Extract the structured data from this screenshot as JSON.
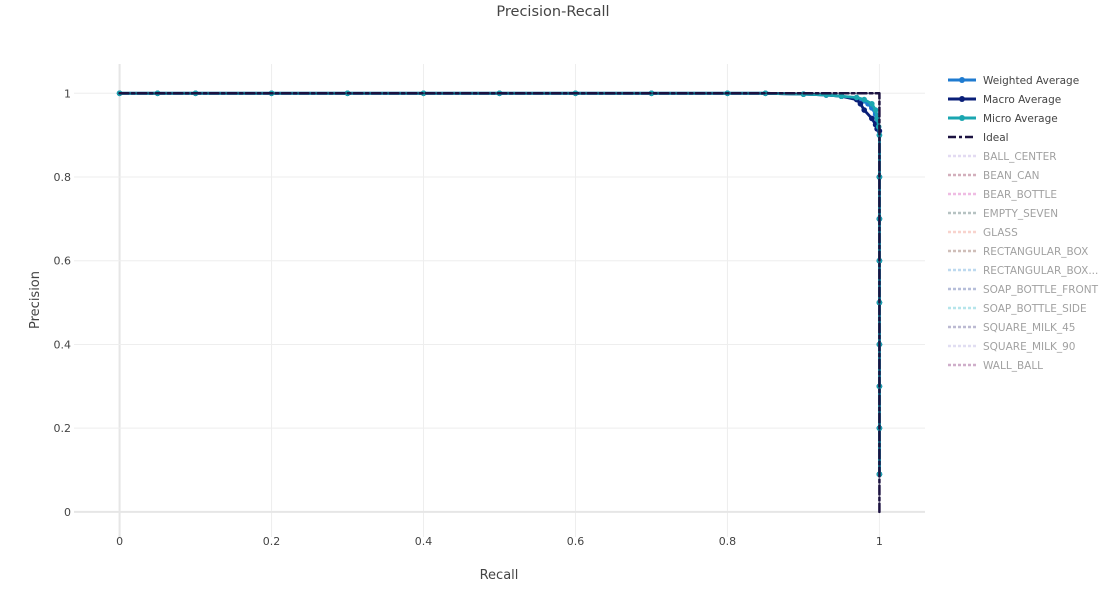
{
  "chart_data": {
    "type": "line",
    "title": "Precision-Recall",
    "xlabel": "Recall",
    "ylabel": "Precision",
    "xlim": [
      -0.06,
      1.06
    ],
    "ylim": [
      -0.06,
      1.07
    ],
    "xticks": [
      0,
      0.2,
      0.4,
      0.6,
      0.8,
      1
    ],
    "yticks": [
      0,
      0.2,
      0.4,
      0.6,
      0.8,
      1
    ],
    "xtick_labels": [
      "0",
      "0.2",
      "0.4",
      "0.6",
      "0.8",
      "1"
    ],
    "ytick_labels": [
      "0",
      "0.2",
      "0.4",
      "0.6",
      "0.8",
      "1"
    ],
    "grid": true,
    "legend_position": "right",
    "series": [
      {
        "name": "Weighted Average",
        "color": "#1f7bd0",
        "style": "lines+markers",
        "x": [
          0,
          0.05,
          0.1,
          0.2,
          0.3,
          0.4,
          0.5,
          0.6,
          0.7,
          0.8,
          0.85,
          0.9,
          0.93,
          0.95,
          0.97,
          0.98,
          0.985,
          0.99,
          0.995,
          0.997,
          1.0,
          1.0,
          1.0,
          1.0,
          1.0,
          1.0,
          1.0,
          1.0,
          1.0
        ],
        "y": [
          1,
          1,
          1,
          1,
          1,
          1,
          1,
          1,
          1,
          1,
          1,
          0.998,
          0.996,
          0.993,
          0.988,
          0.982,
          0.975,
          0.965,
          0.95,
          0.93,
          0.9,
          0.8,
          0.7,
          0.6,
          0.5,
          0.4,
          0.3,
          0.2,
          0.09
        ]
      },
      {
        "name": "Macro Average",
        "color": "#0a1f78",
        "style": "lines+markers",
        "x": [
          0,
          0.05,
          0.1,
          0.2,
          0.3,
          0.4,
          0.5,
          0.6,
          0.7,
          0.8,
          0.85,
          0.9,
          0.93,
          0.95,
          0.97,
          0.975,
          0.98,
          0.99,
          0.995,
          0.997,
          1.0,
          1.0,
          1.0,
          1.0,
          1.0,
          1.0,
          1.0,
          1.0,
          1.0
        ],
        "y": [
          1,
          1,
          1,
          1,
          1,
          1,
          1,
          1,
          1,
          1,
          1,
          0.998,
          0.996,
          0.993,
          0.985,
          0.975,
          0.96,
          0.94,
          0.925,
          0.915,
          0.91,
          0.8,
          0.7,
          0.6,
          0.5,
          0.4,
          0.3,
          0.2,
          0.09
        ]
      },
      {
        "name": "Micro Average",
        "color": "#1aa6b0",
        "style": "lines+markers",
        "x": [
          0,
          0.05,
          0.1,
          0.2,
          0.3,
          0.4,
          0.5,
          0.6,
          0.7,
          0.8,
          0.85,
          0.9,
          0.93,
          0.95,
          0.97,
          0.98,
          0.99,
          0.995,
          0.997,
          0.999,
          1.0,
          1.0,
          1.0,
          1.0,
          1.0,
          1.0,
          1.0,
          1.0,
          1.0
        ],
        "y": [
          1,
          1,
          1,
          1,
          1,
          1,
          1,
          1,
          1,
          1,
          1,
          0.998,
          0.996,
          0.993,
          0.99,
          0.985,
          0.975,
          0.96,
          0.94,
          0.92,
          0.9,
          0.8,
          0.7,
          0.6,
          0.5,
          0.4,
          0.3,
          0.2,
          0.09
        ]
      },
      {
        "name": "Ideal",
        "color": "#1c1240",
        "style": "dashdot",
        "x": [
          0,
          1,
          1
        ],
        "y": [
          1,
          1,
          0
        ]
      },
      {
        "name": "BALL_CENTER",
        "color": "#c9b8e6",
        "style": "dot",
        "visible": "legendonly"
      },
      {
        "name": "BEAN_CAN",
        "color": "#a8627c",
        "style": "dot",
        "visible": "legendonly"
      },
      {
        "name": "BEAR_BOTTLE",
        "color": "#e07bc8",
        "style": "dot",
        "visible": "legendonly"
      },
      {
        "name": "EMPTY_SEVEN",
        "color": "#6f8786",
        "style": "dot",
        "visible": "legendonly"
      },
      {
        "name": "GLASS",
        "color": "#f3a99c",
        "style": "dot",
        "visible": "legendonly"
      },
      {
        "name": "RECTANGULAR_BOX",
        "color": "#a07f74",
        "style": "dot",
        "visible": "legendonly"
      },
      {
        "name": "RECTANGULAR_BOX...",
        "color": "#7db4e0",
        "style": "dot",
        "visible": "legendonly"
      },
      {
        "name": "SOAP_BOTTLE_FRONT",
        "color": "#6f7fb4",
        "style": "dot",
        "visible": "legendonly"
      },
      {
        "name": "SOAP_BOTTLE_SIDE",
        "color": "#6fcdd8",
        "style": "dot",
        "visible": "legendonly"
      },
      {
        "name": "SQUARE_MILK_45",
        "color": "#7c77a6",
        "style": "dot",
        "visible": "legendonly"
      },
      {
        "name": "SQUARE_MILK_90",
        "color": "#c4bfe6",
        "style": "dot",
        "visible": "legendonly"
      },
      {
        "name": "WALL_BALL",
        "color": "#a05f96",
        "style": "dot",
        "visible": "legendonly"
      }
    ]
  }
}
